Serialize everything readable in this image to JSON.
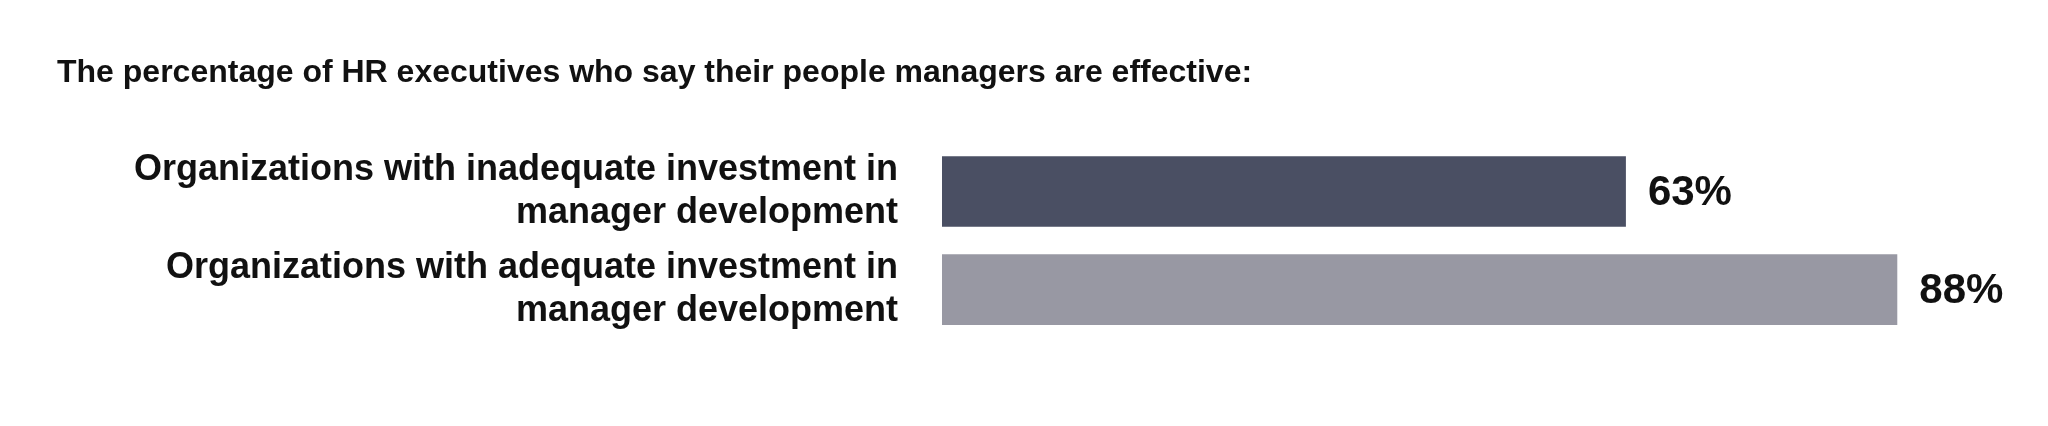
{
  "chart_data": {
    "type": "bar",
    "orientation": "horizontal",
    "title": "The percentage of HR executives who say their people managers are effective:",
    "categories": [
      "Organizations with inadequate investment in manager development",
      "Organizations with adequate investment in manager development"
    ],
    "values": [
      63,
      88
    ],
    "colors": [
      "#4a4f63",
      "#9898a3"
    ],
    "value_labels": [
      "63%",
      "88%"
    ],
    "grid": false,
    "legend": false,
    "tick_labels": "y"
  }
}
